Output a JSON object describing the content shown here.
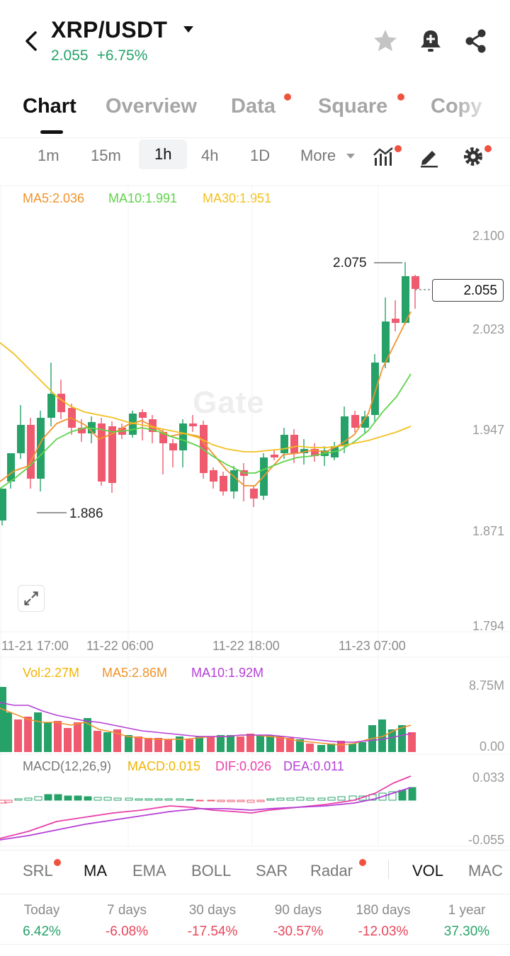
{
  "header": {
    "pair": "XRP/USDT",
    "price": "2.055",
    "change": "+6.75%"
  },
  "tabs": [
    {
      "label": "Chart"
    },
    {
      "label": "Overview"
    },
    {
      "label": "Data"
    },
    {
      "label": "Square"
    },
    {
      "label": "Copy"
    }
  ],
  "intervals": {
    "items": [
      "1m",
      "15m",
      "1h",
      "4h",
      "1D"
    ],
    "more": "More"
  },
  "ma_legend": {
    "ma5": "MA5:2.036",
    "ma10": "MA10:1.991",
    "ma30": "MA30:1.951"
  },
  "price_axis": [
    "2.100",
    "2.023",
    "1.947",
    "1.871",
    "1.794"
  ],
  "time_axis": [
    "11-21 17:00",
    "11-22 06:00",
    "11-22 18:00",
    "11-23 07:00"
  ],
  "current_price_tag": "2.055",
  "high_label": "2.075",
  "low_label": "1.886",
  "watermark": "Gate",
  "volume": {
    "vol": "Vol:2.27M",
    "ma5": "MA5:2.86M",
    "ma10": "MA10:1.92M",
    "axis_top": "8.75M",
    "axis_bottom": "0.00"
  },
  "macd": {
    "title": "MACD(12,26,9)",
    "macd": "MACD:0.015",
    "dif": "DIF:0.026",
    "dea": "DEA:0.011",
    "axis_top": "0.033",
    "axis_bottom": "-0.055"
  },
  "indicators": [
    "SRL",
    "MA",
    "EMA",
    "BOLL",
    "SAR",
    "Radar",
    "VOL",
    "MAC"
  ],
  "performance": [
    {
      "label": "Today",
      "value": "6.42%"
    },
    {
      "label": "7 days",
      "value": "-6.08%"
    },
    {
      "label": "30 days",
      "value": "-17.54%"
    },
    {
      "label": "90 days",
      "value": "-30.57%"
    },
    {
      "label": "180 days",
      "value": "-12.03%"
    },
    {
      "label": "1 year",
      "value": "37.30%"
    }
  ],
  "colors": {
    "up": "#26a269",
    "down": "#ef5a6f",
    "ma5": "#f0932b",
    "ma10": "#5fd34a",
    "ma30": "#f3c020",
    "vol_ma10": "#b53fd6",
    "dif": "#e83fa8",
    "dea": "#b53fd6"
  },
  "icons": {
    "back": "back-arrow-icon",
    "caret": "caret-down-icon",
    "star": "star-icon",
    "alert": "bell-plus-icon",
    "share": "share-icon",
    "indicator": "indicator-chart-icon",
    "draw": "pencil-icon",
    "settings": "gear-icon",
    "expand": "expand-icon"
  }
}
